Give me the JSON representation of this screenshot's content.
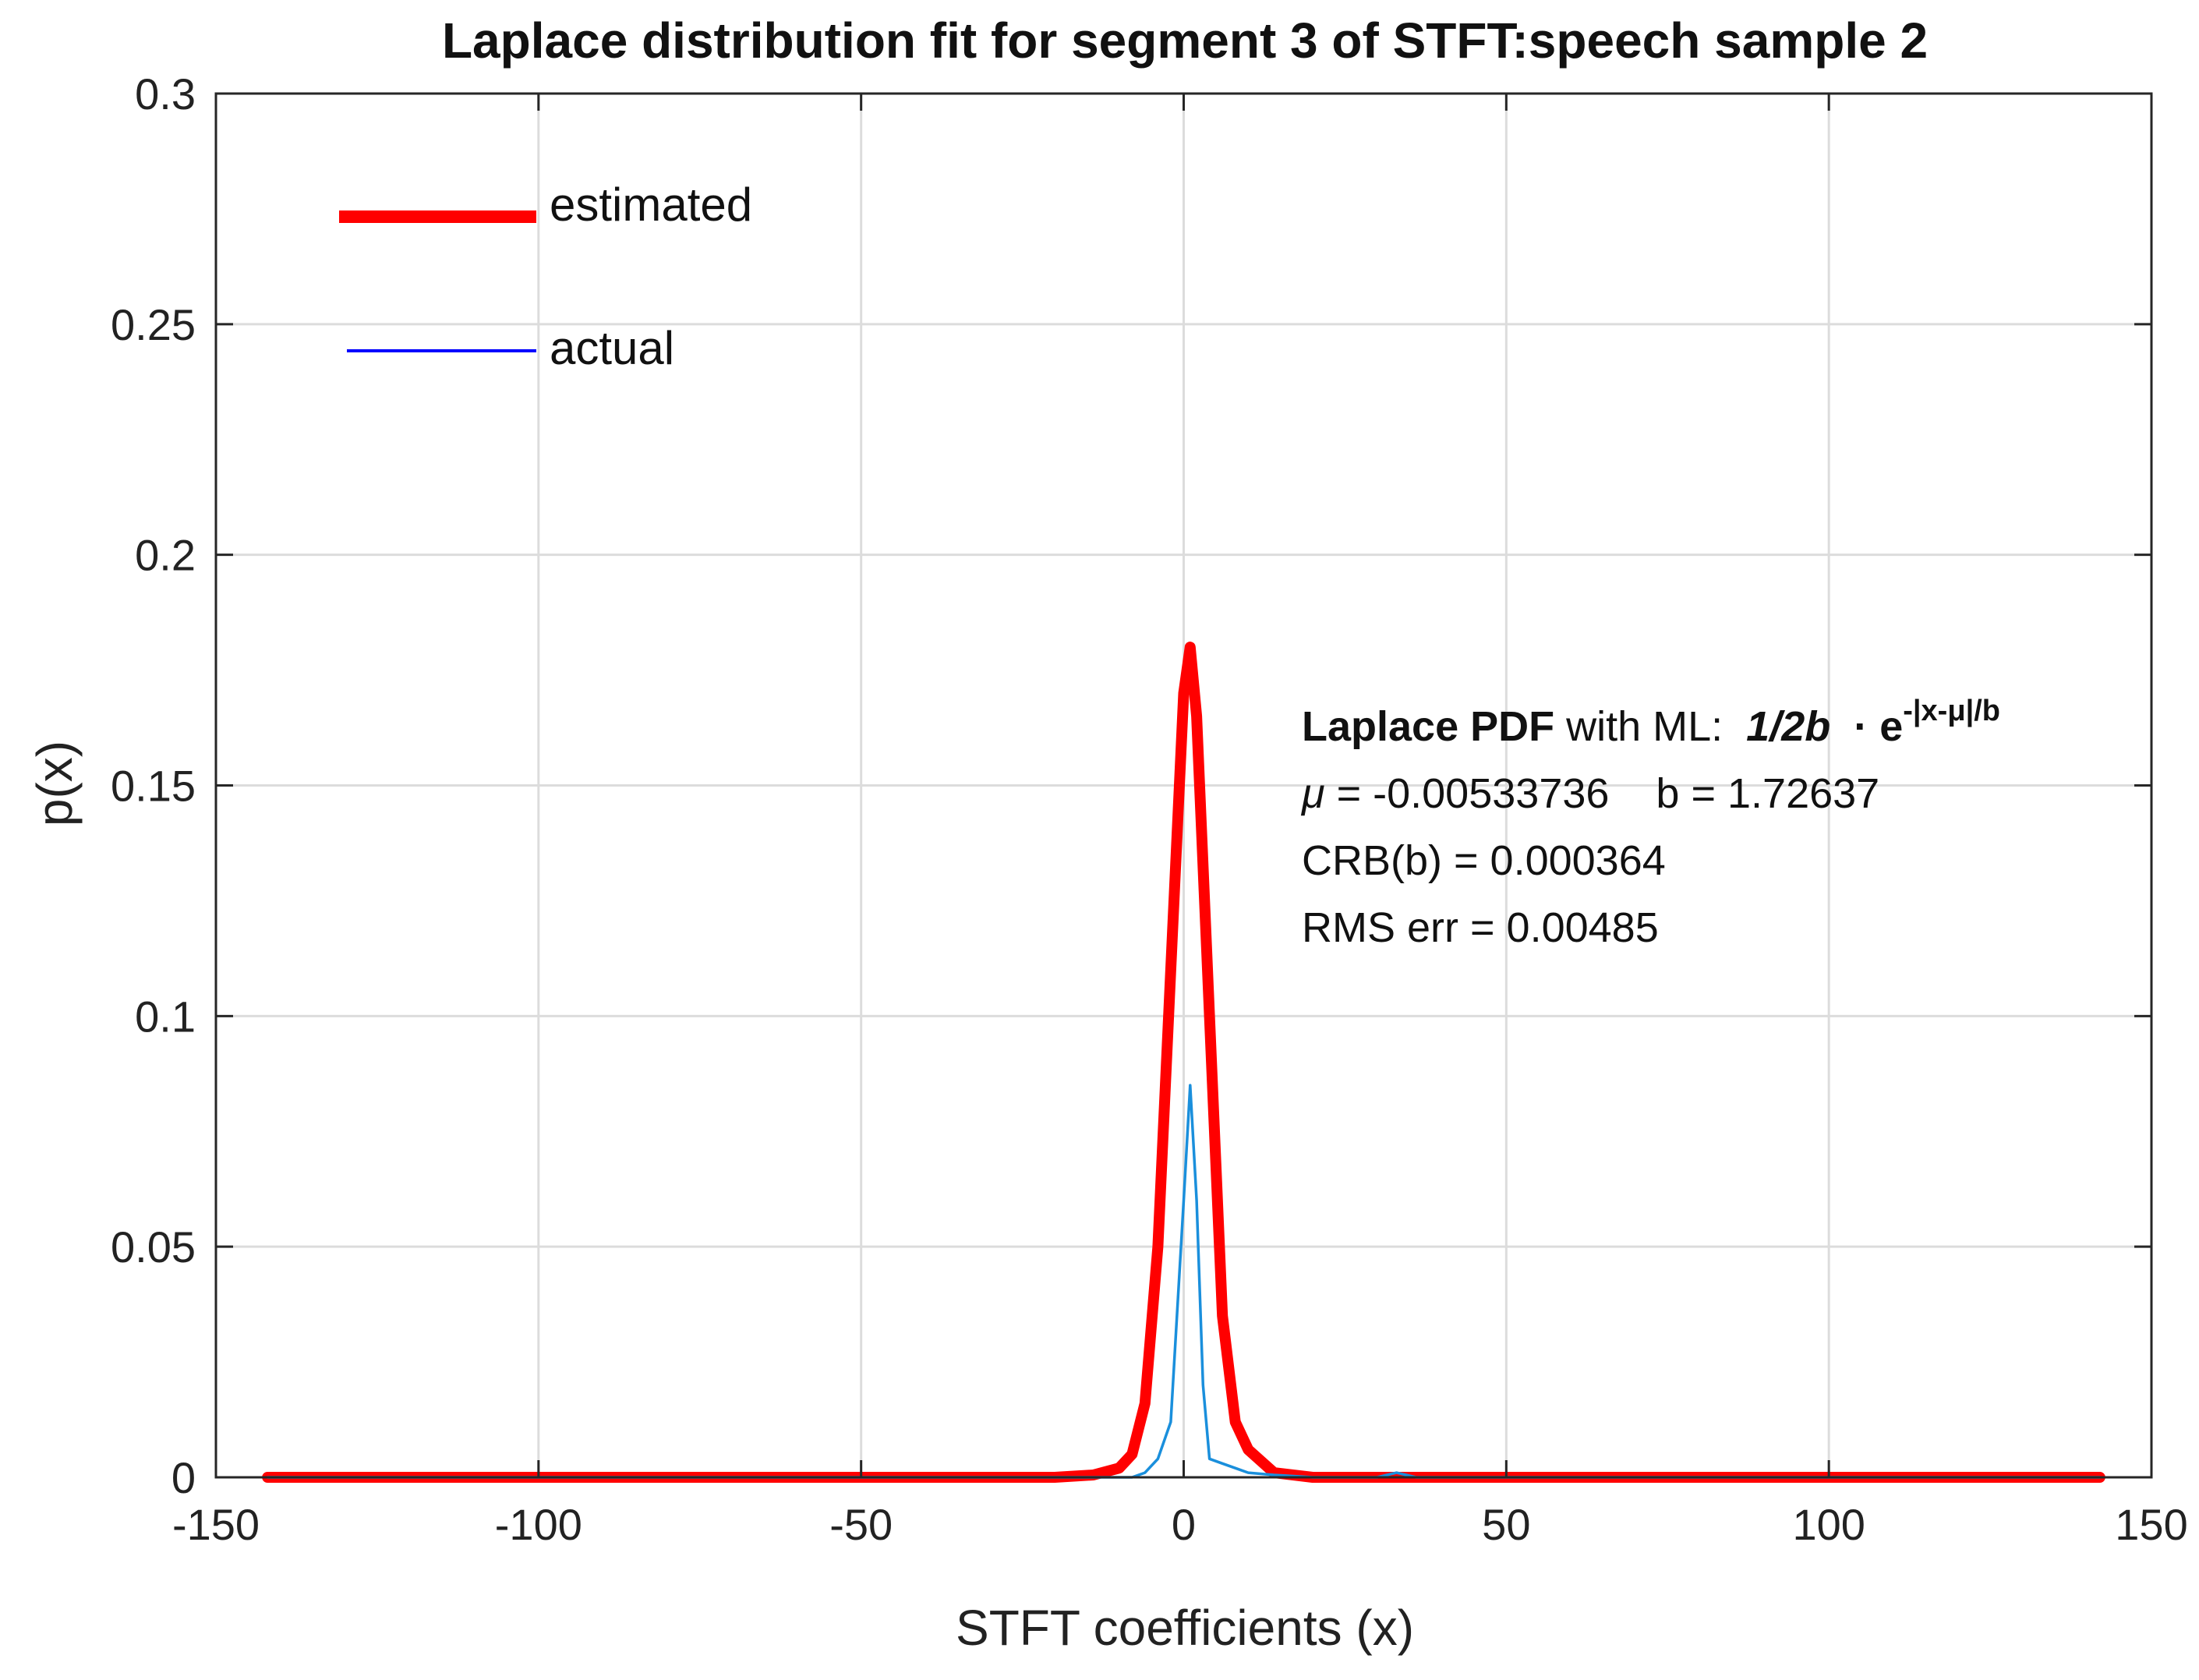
{
  "chart_data": {
    "type": "line",
    "title": "Laplace distribution fit for segment 3 of STFT:speech sample 2",
    "xlabel": "STFT coefficients (x)",
    "ylabel": "p(x)",
    "xlim": [
      -150,
      150
    ],
    "ylim": [
      0,
      0.3
    ],
    "xticks": [
      "-150",
      "-100",
      "-50",
      "0",
      "50",
      "100",
      "150"
    ],
    "yticks": [
      "0",
      "0.05",
      "0.1",
      "0.15",
      "0.2",
      "0.25",
      "0.3"
    ],
    "grid": true,
    "legend": {
      "position": "top-left",
      "entries": [
        "estimated",
        "actual"
      ]
    },
    "series": [
      {
        "name": "estimated",
        "color": "#ff0000",
        "x": [
          -142,
          -20,
          -14,
          -10,
          -8,
          -6,
          -4,
          -2,
          0,
          1,
          2,
          4,
          6,
          8,
          10,
          14,
          20,
          142
        ],
        "y": [
          0,
          0,
          0.0005,
          0.002,
          0.005,
          0.016,
          0.05,
          0.11,
          0.17,
          0.18,
          0.165,
          0.1,
          0.035,
          0.012,
          0.006,
          0.001,
          0,
          0
        ]
      },
      {
        "name": "actual",
        "color": "#0000ff",
        "x": [
          -142,
          -20,
          -10,
          -8,
          -6,
          -4,
          -2,
          0,
          1,
          2,
          3,
          4,
          6,
          8,
          10,
          14,
          20,
          30,
          33,
          36,
          45,
          80,
          142
        ],
        "y": [
          0,
          0,
          0,
          0,
          0.001,
          0.004,
          0.012,
          0.06,
          0.085,
          0.06,
          0.02,
          0.004,
          0.003,
          0.002,
          0.001,
          0.0005,
          0,
          0,
          0.001,
          0,
          0,
          0,
          0
        ]
      }
    ],
    "annotation": {
      "line1_bold": "Laplace PDF",
      "line1_text": " with ML:  ",
      "formula_main": "1/2b",
      "formula_dot": "  · e",
      "formula_sup": "-|x-μ|/b",
      "mu_symbol": "μ",
      "line2": " = -0.00533736    b = 1.72637",
      "line3": "CRB(b) = 0.000364",
      "line4": "RMS err = 0.00485"
    }
  }
}
